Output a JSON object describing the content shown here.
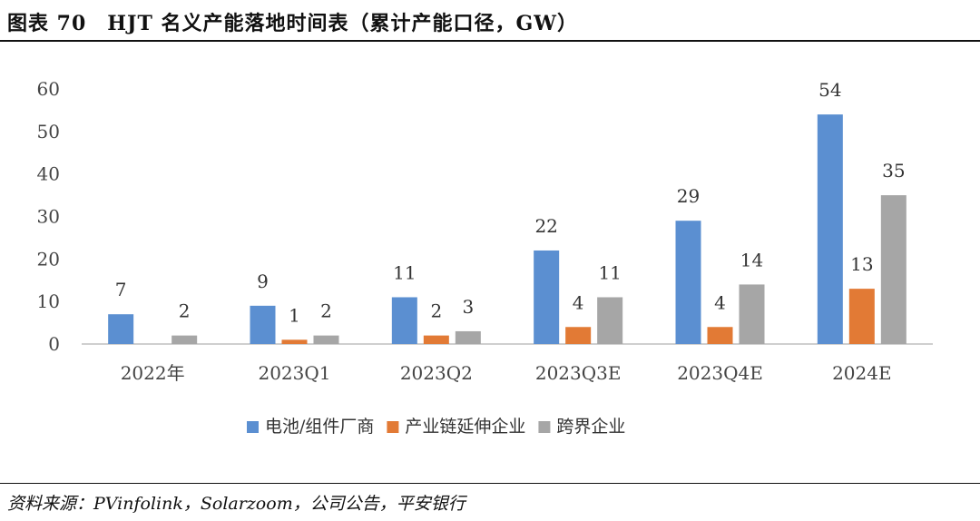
{
  "title": "图表 70　HJT 名义产能落地时间表（累计产能口径，GW）",
  "source": "资料来源：PVinfolink，Solarzoom，公司公告，平安银行",
  "chart_data": {
    "type": "bar",
    "categories": [
      "2022年",
      "2023Q1",
      "2023Q2",
      "2023Q3E",
      "2023Q4E",
      "2024E"
    ],
    "series": [
      {
        "name": "电池/组件厂商",
        "values": [
          7,
          9,
          11,
          22,
          29,
          54
        ],
        "color": "#5b8fd1"
      },
      {
        "name": "产业链延伸企业",
        "values": [
          null,
          1,
          2,
          4,
          4,
          13
        ],
        "color": "#e27a35"
      },
      {
        "name": "跨界企业",
        "values": [
          2,
          2,
          3,
          11,
          14,
          35
        ],
        "color": "#a6a6a6"
      }
    ],
    "yticks": [
      0,
      10,
      20,
      30,
      40,
      50,
      60
    ],
    "ylim": [
      0,
      60
    ],
    "grid": false,
    "legend": "bottom"
  }
}
